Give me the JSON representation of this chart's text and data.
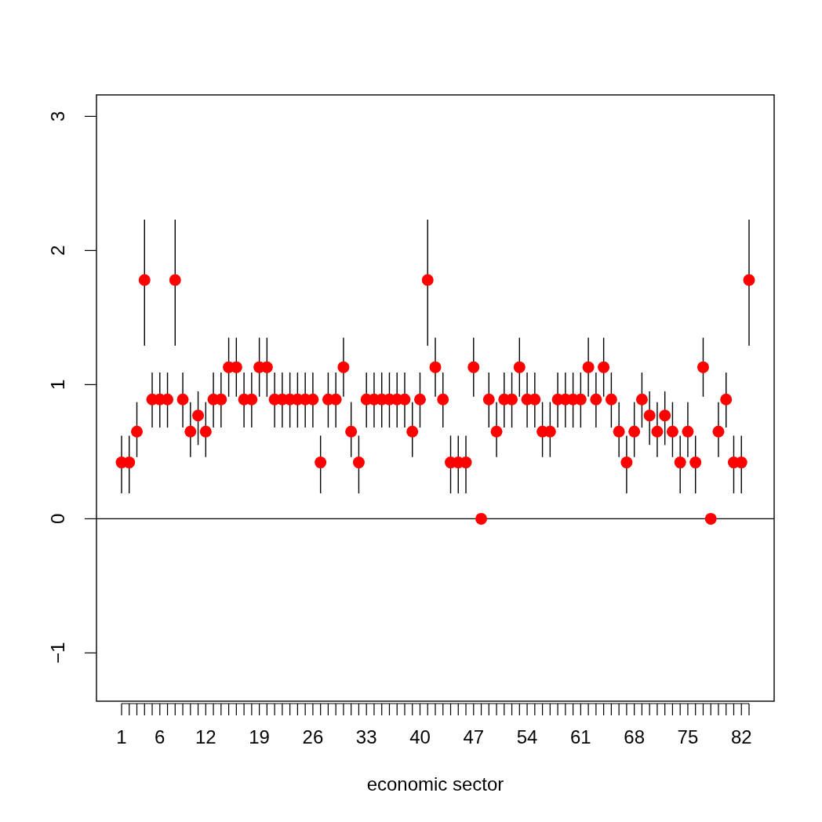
{
  "chart_data": {
    "type": "scatter",
    "xlabel": "economic sector",
    "marker": "circle",
    "color": "#ff0000",
    "x": [
      1,
      2,
      3,
      4,
      5,
      6,
      7,
      8,
      9,
      10,
      11,
      12,
      13,
      14,
      15,
      16,
      17,
      18,
      19,
      20,
      21,
      22,
      23,
      24,
      25,
      26,
      27,
      28,
      29,
      30,
      31,
      32,
      33,
      34,
      35,
      36,
      37,
      38,
      39,
      40,
      41,
      42,
      43,
      44,
      45,
      46,
      47,
      48,
      49,
      50,
      51,
      52,
      53,
      54,
      55,
      56,
      57,
      58,
      59,
      60,
      61,
      62,
      63,
      64,
      65,
      66,
      67,
      68,
      69,
      70,
      71,
      72,
      73,
      74,
      75,
      76,
      77,
      78,
      79,
      80,
      81,
      82,
      83
    ],
    "values": [
      0.42,
      0.42,
      0.65,
      1.78,
      0.89,
      0.89,
      0.89,
      1.78,
      0.89,
      0.65,
      0.77,
      0.65,
      0.89,
      0.89,
      1.13,
      1.13,
      0.89,
      0.89,
      1.13,
      1.13,
      0.89,
      0.89,
      0.89,
      0.89,
      0.89,
      0.89,
      0.42,
      0.89,
      0.89,
      1.13,
      0.65,
      0.42,
      0.89,
      0.89,
      0.89,
      0.89,
      0.89,
      0.89,
      0.65,
      0.89,
      1.78,
      1.13,
      0.89,
      0.42,
      0.42,
      0.42,
      1.13,
      0,
      0.89,
      0.65,
      0.89,
      0.89,
      1.13,
      0.89,
      0.89,
      0.65,
      0.65,
      0.89,
      0.89,
      0.89,
      0.89,
      1.13,
      0.89,
      1.13,
      0.89,
      0.65,
      0.42,
      0.65,
      0.89,
      0.77,
      0.65,
      0.77,
      0.65,
      0.42,
      0.65,
      0.42,
      1.13,
      0,
      0.65,
      0.89,
      0.42,
      0.42,
      1.78
    ],
    "errors": [
      [
        0.19,
        0.62
      ],
      [
        0.19,
        0.62
      ],
      [
        0.46,
        0.87
      ],
      [
        1.29,
        2.23
      ],
      [
        0.68,
        1.09
      ],
      [
        0.68,
        1.09
      ],
      [
        0.68,
        1.09
      ],
      [
        1.29,
        2.23
      ],
      [
        0.68,
        1.09
      ],
      [
        0.46,
        0.87
      ],
      [
        0.55,
        0.95
      ],
      [
        0.46,
        0.87
      ],
      [
        0.68,
        1.09
      ],
      [
        0.68,
        1.09
      ],
      [
        0.91,
        1.35
      ],
      [
        0.91,
        1.35
      ],
      [
        0.68,
        1.09
      ],
      [
        0.68,
        1.09
      ],
      [
        0.91,
        1.35
      ],
      [
        0.91,
        1.35
      ],
      [
        0.68,
        1.09
      ],
      [
        0.68,
        1.09
      ],
      [
        0.68,
        1.09
      ],
      [
        0.68,
        1.09
      ],
      [
        0.68,
        1.09
      ],
      [
        0.68,
        1.09
      ],
      [
        0.19,
        0.62
      ],
      [
        0.68,
        1.09
      ],
      [
        0.68,
        1.09
      ],
      [
        0.91,
        1.35
      ],
      [
        0.46,
        0.87
      ],
      [
        0.19,
        0.62
      ],
      [
        0.68,
        1.09
      ],
      [
        0.68,
        1.09
      ],
      [
        0.68,
        1.09
      ],
      [
        0.68,
        1.09
      ],
      [
        0.68,
        1.09
      ],
      [
        0.68,
        1.09
      ],
      [
        0.46,
        0.87
      ],
      [
        0.68,
        1.09
      ],
      [
        1.29,
        2.23
      ],
      [
        0.91,
        1.35
      ],
      [
        0.68,
        1.09
      ],
      [
        0.19,
        0.62
      ],
      [
        0.19,
        0.62
      ],
      [
        0.19,
        0.62
      ],
      [
        0.91,
        1.35
      ],
      null,
      [
        0.68,
        1.09
      ],
      [
        0.46,
        0.87
      ],
      [
        0.68,
        1.09
      ],
      [
        0.68,
        1.09
      ],
      [
        0.91,
        1.35
      ],
      [
        0.68,
        1.09
      ],
      [
        0.68,
        1.09
      ],
      [
        0.46,
        0.87
      ],
      [
        0.46,
        0.87
      ],
      [
        0.68,
        1.09
      ],
      [
        0.68,
        1.09
      ],
      [
        0.68,
        1.09
      ],
      [
        0.68,
        1.09
      ],
      [
        0.91,
        1.35
      ],
      [
        0.68,
        1.09
      ],
      [
        0.91,
        1.35
      ],
      [
        0.68,
        1.09
      ],
      [
        0.46,
        0.87
      ],
      [
        0.19,
        0.62
      ],
      [
        0.46,
        0.87
      ],
      [
        0.68,
        1.09
      ],
      [
        0.55,
        0.95
      ],
      [
        0.46,
        0.87
      ],
      [
        0.55,
        0.95
      ],
      [
        0.46,
        0.87
      ],
      [
        0.19,
        0.62
      ],
      [
        0.46,
        0.87
      ],
      [
        0.19,
        0.62
      ],
      [
        0.91,
        1.35
      ],
      null,
      [
        0.46,
        0.87
      ],
      [
        0.68,
        1.09
      ],
      [
        0.19,
        0.62
      ],
      [
        0.19,
        0.62
      ],
      [
        1.29,
        2.23
      ]
    ],
    "xlim": [
      -2.28,
      86.28
    ],
    "ylim": [
      -1.36,
      3.16
    ],
    "xticks": [
      1,
      {
        "value": 2,
        "label": null
      },
      {
        "value": 3,
        "label": null
      },
      {
        "value": 4,
        "label": null
      },
      {
        "value": 5,
        "label": null
      },
      6,
      {
        "value": 7,
        "label": null
      },
      {
        "value": 8,
        "label": null
      },
      {
        "value": 9,
        "label": null
      },
      {
        "value": 10,
        "label": null
      },
      {
        "value": 11,
        "label": null
      },
      12,
      {
        "value": 13,
        "label": null
      },
      {
        "value": 14,
        "label": null
      },
      {
        "value": 15,
        "label": null
      },
      {
        "value": 16,
        "label": null
      },
      {
        "value": 17,
        "label": null
      },
      {
        "value": 18,
        "label": null
      },
      19,
      {
        "value": 20,
        "label": null
      },
      {
        "value": 21,
        "label": null
      },
      {
        "value": 22,
        "label": null
      },
      {
        "value": 23,
        "label": null
      },
      {
        "value": 24,
        "label": null
      },
      {
        "value": 25,
        "label": null
      },
      26,
      {
        "value": 27,
        "label": null
      },
      {
        "value": 28,
        "label": null
      },
      {
        "value": 29,
        "label": null
      },
      {
        "value": 30,
        "label": null
      },
      {
        "value": 31,
        "label": null
      },
      {
        "value": 32,
        "label": null
      },
      33,
      {
        "value": 34,
        "label": null
      },
      {
        "value": 35,
        "label": null
      },
      {
        "value": 36,
        "label": null
      },
      {
        "value": 37,
        "label": null
      },
      {
        "value": 38,
        "label": null
      },
      {
        "value": 39,
        "label": null
      },
      40,
      {
        "value": 41,
        "label": null
      },
      {
        "value": 42,
        "label": null
      },
      {
        "value": 43,
        "label": null
      },
      {
        "value": 44,
        "label": null
      },
      {
        "value": 45,
        "label": null
      },
      {
        "value": 46,
        "label": null
      },
      47,
      {
        "value": 48,
        "label": null
      },
      {
        "value": 49,
        "label": null
      },
      {
        "value": 50,
        "label": null
      },
      {
        "value": 51,
        "label": null
      },
      {
        "value": 52,
        "label": null
      },
      {
        "value": 53,
        "label": null
      },
      54,
      {
        "value": 55,
        "label": null
      },
      {
        "value": 56,
        "label": null
      },
      {
        "value": 57,
        "label": null
      },
      {
        "value": 58,
        "label": null
      },
      {
        "value": 59,
        "label": null
      },
      {
        "value": 60,
        "label": null
      },
      61,
      {
        "value": 62,
        "label": null
      },
      {
        "value": 63,
        "label": null
      },
      {
        "value": 64,
        "label": null
      },
      {
        "value": 65,
        "label": null
      },
      {
        "value": 66,
        "label": null
      },
      {
        "value": 67,
        "label": null
      },
      68,
      {
        "value": 69,
        "label": null
      },
      {
        "value": 70,
        "label": null
      },
      {
        "value": 71,
        "label": null
      },
      {
        "value": 72,
        "label": null
      },
      {
        "value": 73,
        "label": null
      },
      {
        "value": 74,
        "label": null
      },
      75,
      {
        "value": 76,
        "label": null
      },
      {
        "value": 77,
        "label": null
      },
      {
        "value": 78,
        "label": null
      },
      {
        "value": 79,
        "label": null
      },
      {
        "value": 80,
        "label": null
      },
      {
        "value": 81,
        "label": null
      },
      82,
      {
        "value": 83,
        "label": null
      }
    ],
    "yticks": [
      {
        "value": -1,
        "label": "−1"
      },
      0,
      1,
      2,
      3
    ],
    "ref_lines": [
      {
        "axis": "y",
        "value": 0,
        "color": "#000000"
      }
    ]
  }
}
